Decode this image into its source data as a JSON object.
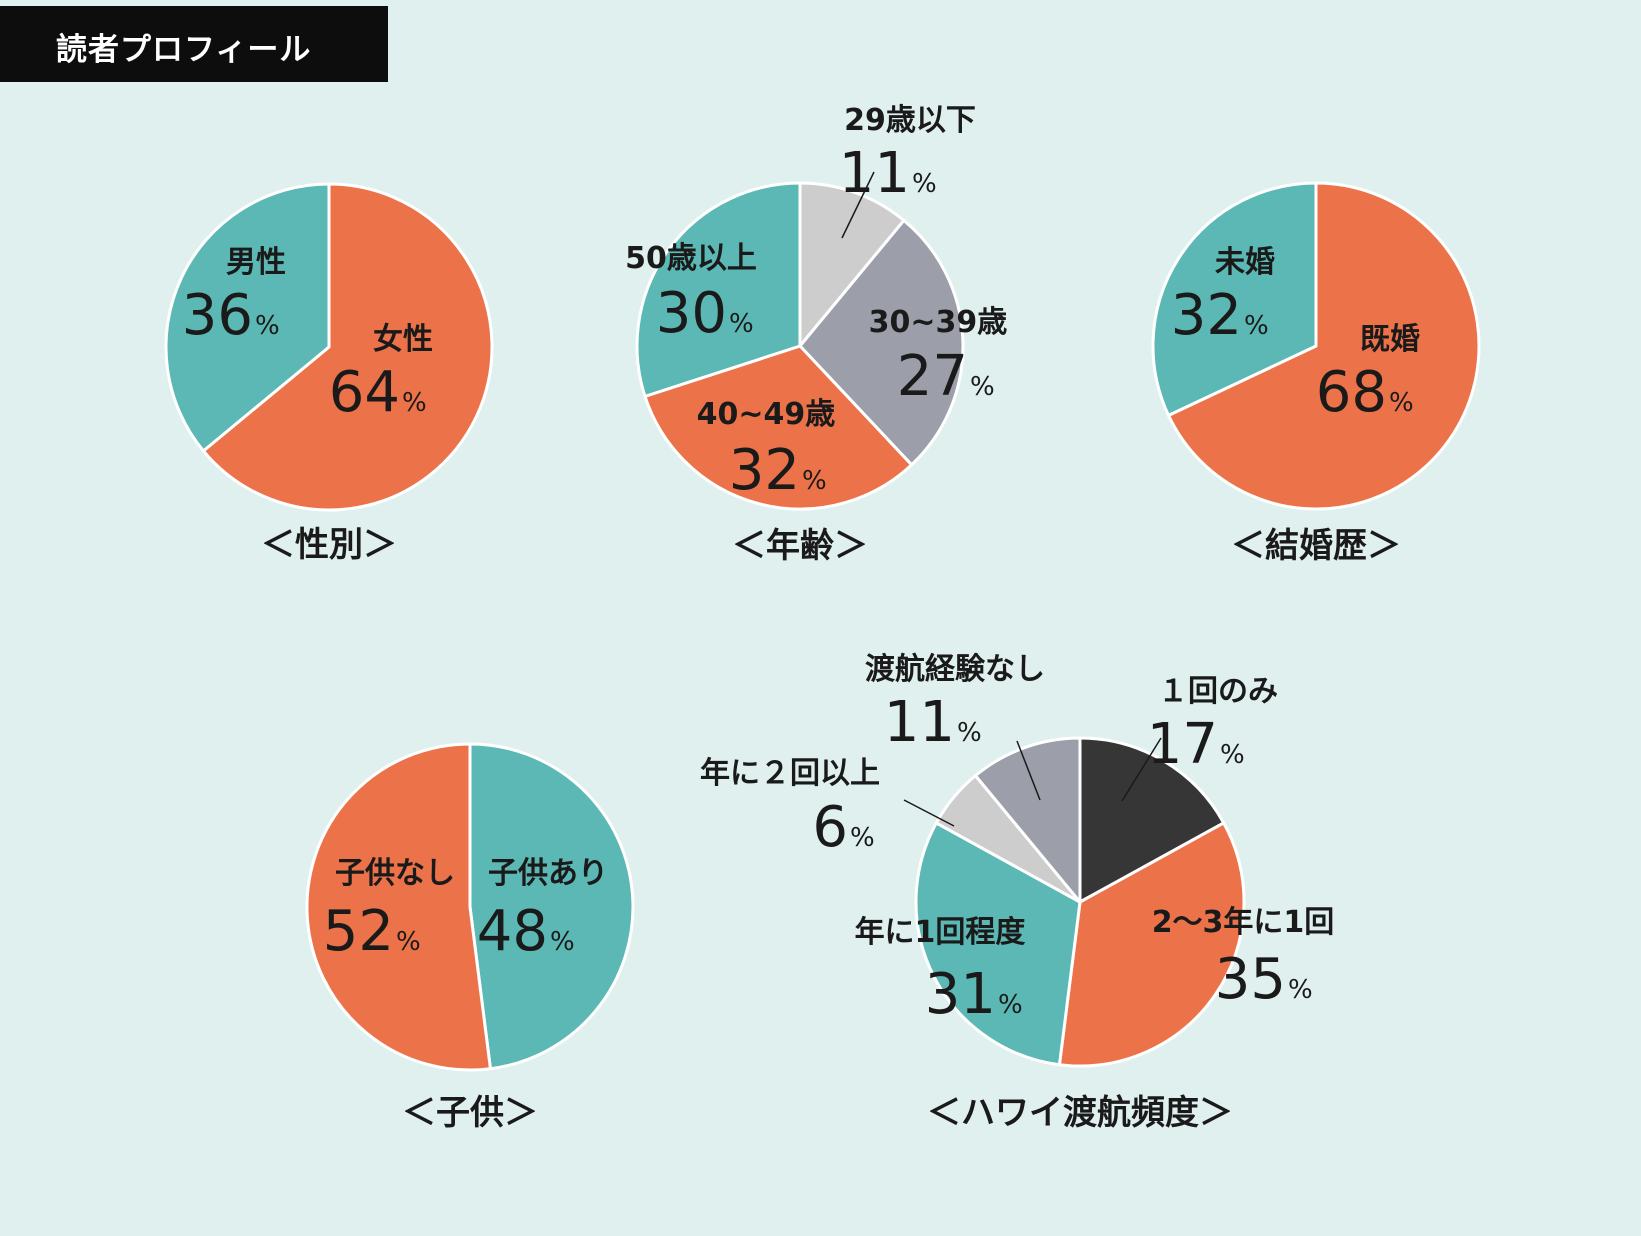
{
  "header": {
    "title": "読者プロフィール"
  },
  "percent_sign": "%",
  "colors": {
    "background": "#e0f0ef",
    "teal": "#5cb8b4",
    "orange": "#ec7349",
    "gray": "#9c9fa9",
    "lightgray": "#cdcdcd",
    "dark": "#363636",
    "stroke": "#ffffff"
  },
  "chart_data": [
    {
      "id": "gender",
      "type": "pie",
      "title": "＜性別＞",
      "slices": [
        {
          "label": "女性",
          "value": 64,
          "color": "#ec7349"
        },
        {
          "label": "男性",
          "value": 36,
          "color": "#5cb8b4"
        }
      ]
    },
    {
      "id": "age",
      "type": "pie",
      "title": "＜年齢＞",
      "slices": [
        {
          "label": "29歳以下",
          "value": 11,
          "color": "#cdcdcd"
        },
        {
          "label": "30~39歳",
          "value": 27,
          "color": "#9c9fa9"
        },
        {
          "label": "40~49歳",
          "value": 32,
          "color": "#ec7349"
        },
        {
          "label": "50歳以上",
          "value": 30,
          "color": "#5cb8b4"
        }
      ]
    },
    {
      "id": "marital",
      "type": "pie",
      "title": "＜結婚歴＞",
      "slices": [
        {
          "label": "既婚",
          "value": 68,
          "color": "#ec7349"
        },
        {
          "label": "未婚",
          "value": 32,
          "color": "#5cb8b4"
        }
      ]
    },
    {
      "id": "children",
      "type": "pie",
      "title": "＜子供＞",
      "slices": [
        {
          "label": "子供あり",
          "value": 48,
          "color": "#5cb8b4"
        },
        {
          "label": "子供なし",
          "value": 52,
          "color": "#ec7349"
        }
      ]
    },
    {
      "id": "hawaii",
      "type": "pie",
      "title": "＜ハワイ渡航頻度＞",
      "slices": [
        {
          "label": "１回のみ",
          "value": 17,
          "color": "#363636"
        },
        {
          "label": "2～3年に1回",
          "value": 35,
          "color": "#ec7349"
        },
        {
          "label": "年に1回程度",
          "value": 31,
          "color": "#5cb8b4"
        },
        {
          "label": "年に２回以上",
          "value": 6,
          "color": "#cdcdcd"
        },
        {
          "label": "渡航経験なし",
          "value": 11,
          "color": "#9c9fa9"
        }
      ]
    }
  ]
}
